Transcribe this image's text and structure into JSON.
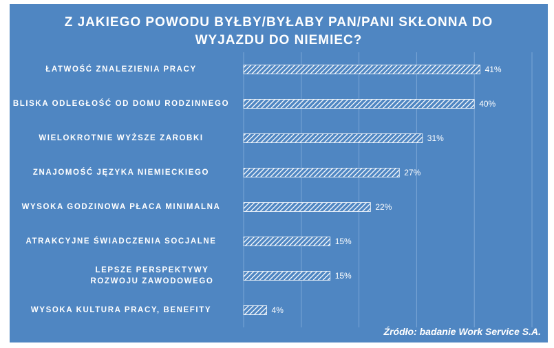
{
  "chart_data": {
    "type": "bar",
    "orientation": "horizontal",
    "title_lines": [
      "Z JAKIEGO  POWODU BYŁBY/BYŁABY  PAN/PANI SKŁONNA DO",
      "WYJAZDU DO NIEMIEC?"
    ],
    "categories": [
      "ŁATWOŚĆ ZNALEZIENIA PRACY",
      "BLISKA ODLEGŁOŚĆ OD DOMU RODZINNEGO",
      "WIELOKROTNIE  WYŻSZE ZAROBKI",
      "ZNAJOMOŚĆ JĘZYKA NIEMIECKIEGO",
      "WYSOKA GODZINOWA PŁACA MINIMALNA",
      "ATRAKCYJNE ŚWIADCZENIA SOCJALNE",
      "LEPSZE PERSPEKTYWY ROZWOJU ZAWODOWEGO",
      "WYSOKA KULTURA PRACY, BENEFITY"
    ],
    "values": [
      41,
      40,
      31,
      27,
      22,
      15,
      15,
      4
    ],
    "value_labels": [
      "41%",
      "40%",
      "31%",
      "27%",
      "22%",
      "15%",
      "15%",
      "4%"
    ],
    "xlim": [
      0,
      50
    ],
    "grid": true,
    "source": "Źródło: badanie Work Service S.A."
  },
  "colors": {
    "background": "#4f86c2",
    "bar_stripe": "#ffffff",
    "grid": "#7aa6d6"
  }
}
